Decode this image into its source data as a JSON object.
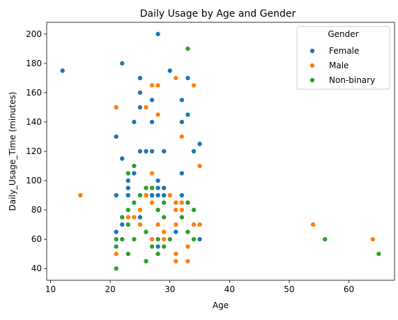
{
  "chart_data": {
    "type": "scatter",
    "title": "Daily Usage by Age and Gender",
    "xlabel": "Age",
    "ylabel": "Daily_Usage_Time (minutes)",
    "xlim": [
      9.35,
      67.65
    ],
    "ylim": [
      32,
      208
    ],
    "xticks": [
      10,
      20,
      30,
      40,
      50,
      60
    ],
    "yticks": [
      40,
      60,
      80,
      100,
      120,
      140,
      160,
      180,
      200
    ],
    "grid": false,
    "legend": {
      "title": "Gender",
      "placement": "top-right"
    },
    "series": [
      {
        "name": "Female",
        "color": "#1f77b4",
        "points": [
          [
            12,
            175
          ],
          [
            21,
            130
          ],
          [
            21,
            90
          ],
          [
            21,
            65
          ],
          [
            22,
            180
          ],
          [
            22,
            115
          ],
          [
            22,
            70
          ],
          [
            23,
            100
          ],
          [
            23,
            95
          ],
          [
            23,
            90
          ],
          [
            24,
            140
          ],
          [
            24,
            105
          ],
          [
            24,
            75
          ],
          [
            25,
            170
          ],
          [
            25,
            160
          ],
          [
            25,
            150
          ],
          [
            25,
            120
          ],
          [
            25,
            75
          ],
          [
            26,
            120
          ],
          [
            26,
            90
          ],
          [
            27,
            155
          ],
          [
            27,
            140
          ],
          [
            27,
            120
          ],
          [
            27,
            90
          ],
          [
            28,
            200
          ],
          [
            28,
            100
          ],
          [
            28,
            95
          ],
          [
            28,
            90
          ],
          [
            28,
            55
          ],
          [
            29,
            120
          ],
          [
            29,
            95
          ],
          [
            29,
            90
          ],
          [
            29,
            55
          ],
          [
            30,
            175
          ],
          [
            31,
            65
          ],
          [
            32,
            155
          ],
          [
            32,
            140
          ],
          [
            32,
            105
          ],
          [
            32,
            90
          ],
          [
            33,
            170
          ],
          [
            33,
            145
          ],
          [
            34,
            120
          ],
          [
            35,
            125
          ],
          [
            35,
            60
          ]
        ]
      },
      {
        "name": "Male",
        "color": "#ff7f0e",
        "points": [
          [
            15,
            90
          ],
          [
            21,
            150
          ],
          [
            21,
            55
          ],
          [
            21,
            50
          ],
          [
            23,
            75
          ],
          [
            24,
            75
          ],
          [
            25,
            90
          ],
          [
            25,
            80
          ],
          [
            25,
            70
          ],
          [
            26,
            150
          ],
          [
            26,
            90
          ],
          [
            27,
            165
          ],
          [
            27,
            105
          ],
          [
            27,
            85
          ],
          [
            27,
            60
          ],
          [
            28,
            165
          ],
          [
            28,
            145
          ],
          [
            28,
            70
          ],
          [
            29,
            65
          ],
          [
            29,
            60
          ],
          [
            30,
            90
          ],
          [
            31,
            170
          ],
          [
            31,
            85
          ],
          [
            31,
            80
          ],
          [
            31,
            70
          ],
          [
            31,
            50
          ],
          [
            31,
            45
          ],
          [
            32,
            130
          ],
          [
            32,
            85
          ],
          [
            32,
            80
          ],
          [
            33,
            65
          ],
          [
            33,
            55
          ],
          [
            33,
            45
          ],
          [
            34,
            165
          ],
          [
            34,
            70
          ],
          [
            35,
            110
          ],
          [
            35,
            70
          ],
          [
            54,
            70
          ],
          [
            64,
            60
          ]
        ]
      },
      {
        "name": "Non-binary",
        "color": "#2ca02c",
        "points": [
          [
            21,
            60
          ],
          [
            21,
            55
          ],
          [
            21,
            40
          ],
          [
            22,
            75
          ],
          [
            22,
            60
          ],
          [
            23,
            105
          ],
          [
            23,
            80
          ],
          [
            23,
            70
          ],
          [
            23,
            50
          ],
          [
            24,
            110
          ],
          [
            24,
            85
          ],
          [
            24,
            60
          ],
          [
            25,
            90
          ],
          [
            26,
            95
          ],
          [
            26,
            65
          ],
          [
            26,
            45
          ],
          [
            27,
            95
          ],
          [
            27,
            55
          ],
          [
            28,
            80
          ],
          [
            28,
            60
          ],
          [
            28,
            50
          ],
          [
            29,
            85
          ],
          [
            29,
            75
          ],
          [
            29,
            55
          ],
          [
            30,
            60
          ],
          [
            32,
            75
          ],
          [
            33,
            190
          ],
          [
            33,
            85
          ],
          [
            33,
            65
          ],
          [
            34,
            80
          ],
          [
            34,
            60
          ],
          [
            56,
            60
          ],
          [
            65,
            50
          ]
        ]
      }
    ]
  }
}
